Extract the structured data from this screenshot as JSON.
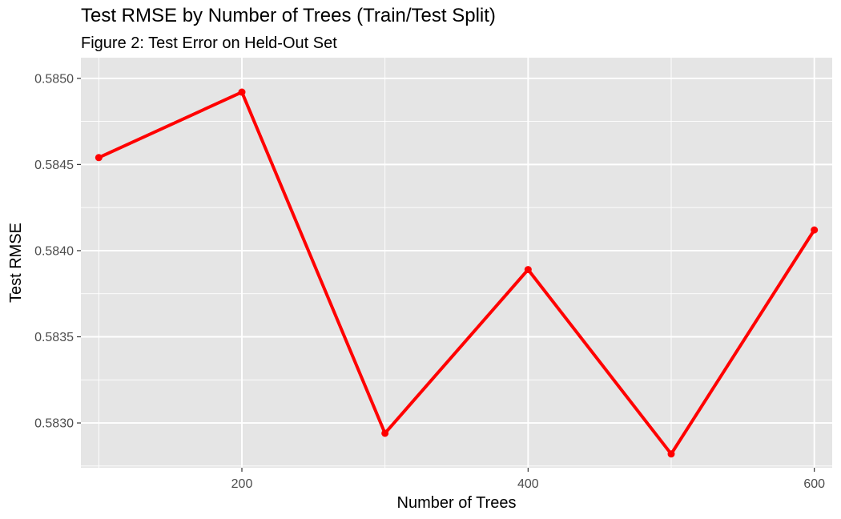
{
  "chart_data": {
    "type": "line",
    "title": "Test RMSE by Number of Trees (Train/Test Split)",
    "subtitle": "Figure 2: Test Error on Held-Out Set",
    "xlabel": "Number of Trees",
    "ylabel": "Test RMSE",
    "x": [
      100,
      200,
      300,
      400,
      500,
      600
    ],
    "series": [
      {
        "values": [
          0.58454,
          0.58492,
          0.58294,
          0.58389,
          0.58282,
          0.58412
        ]
      }
    ],
    "xlim": [
      87.5,
      612.5
    ],
    "ylim": [
      0.58274,
      0.58512
    ],
    "x_ticks": [
      200,
      400,
      600
    ],
    "x_tick_labels": [
      "200",
      "400",
      "600"
    ],
    "y_ticks": [
      0.583,
      0.5835,
      0.584,
      0.5845,
      0.585
    ],
    "y_tick_labels": [
      "0.5830",
      "0.5835",
      "0.5840",
      "0.5845",
      "0.5850"
    ],
    "grid": true,
    "colors": {
      "line": "#ff0000",
      "panel": "#e5e5e5",
      "grid": "#ffffff"
    }
  }
}
